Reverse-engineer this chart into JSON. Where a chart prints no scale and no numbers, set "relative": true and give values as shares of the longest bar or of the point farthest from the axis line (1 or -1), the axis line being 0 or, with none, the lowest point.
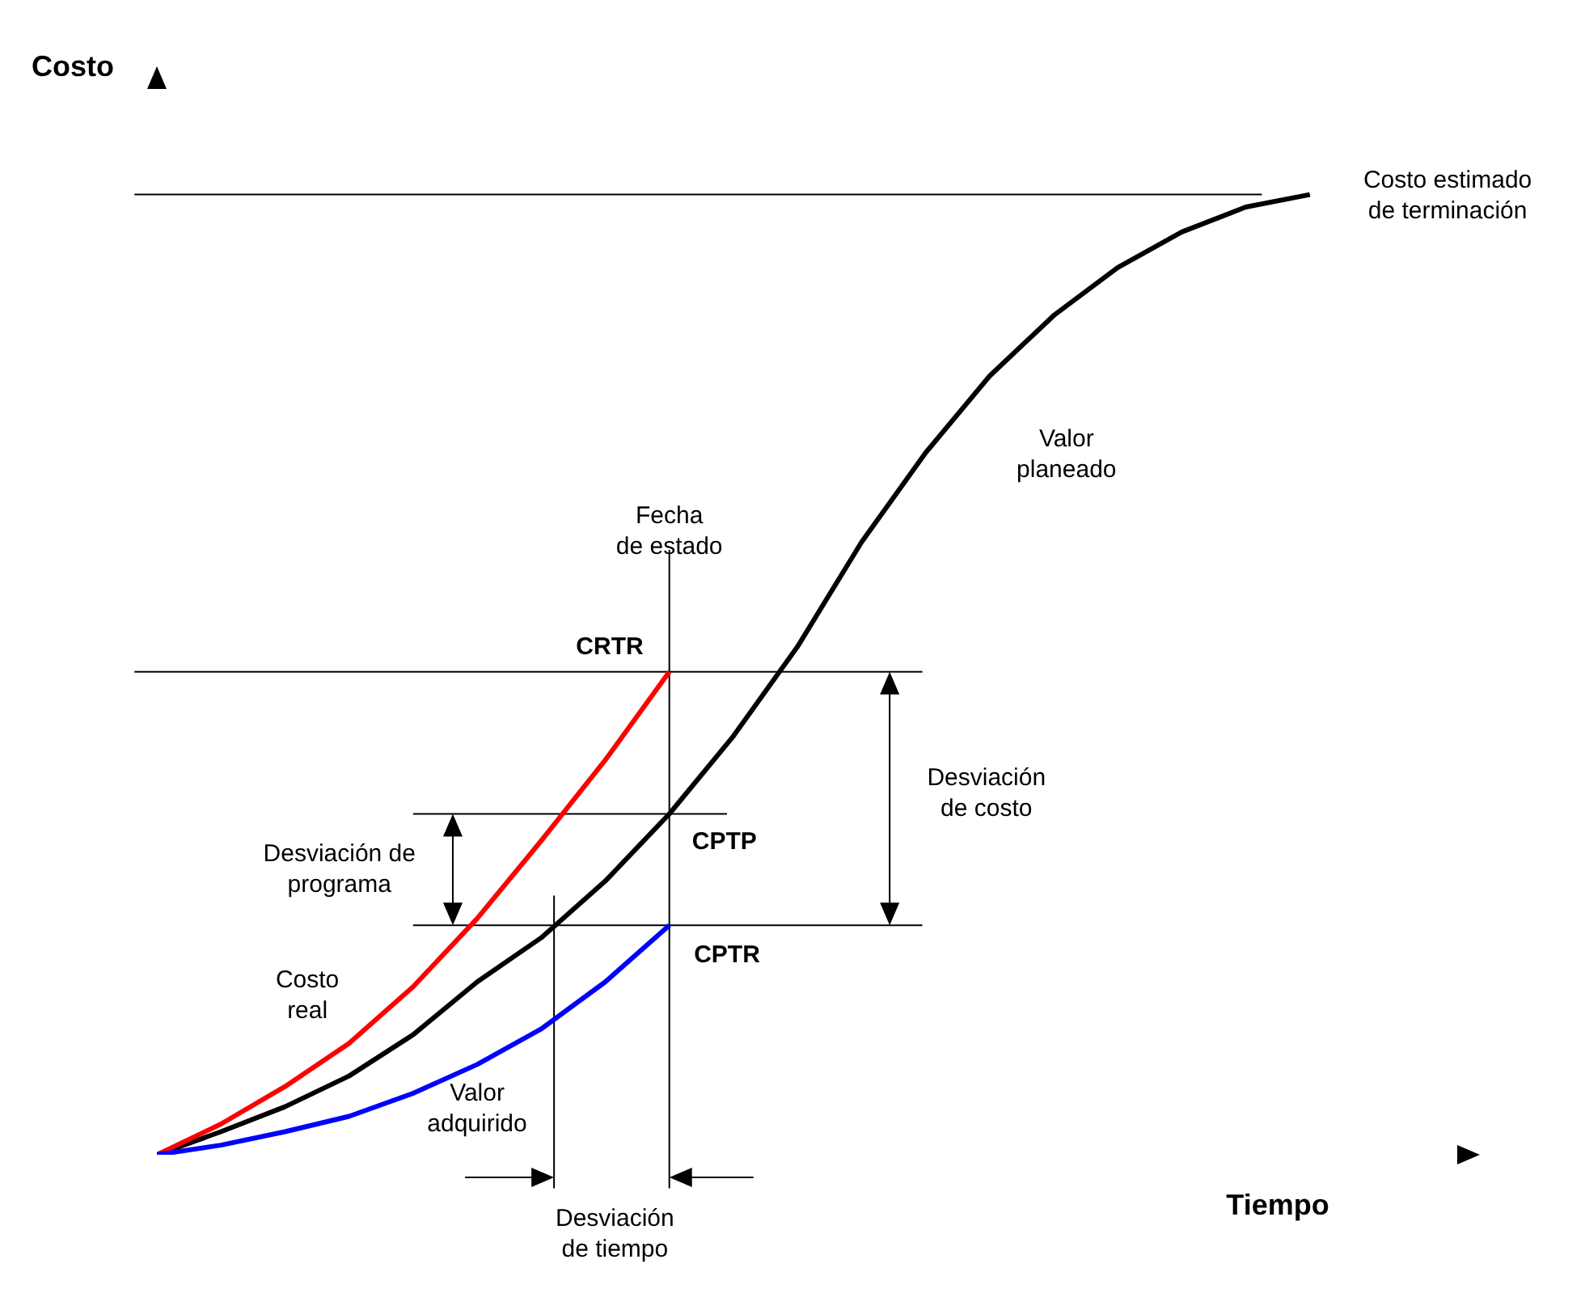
{
  "chart_data": {
    "type": "line",
    "relative": true,
    "xlabel": "Tiempo",
    "ylabel": "Costo",
    "marker": "none",
    "line_style": "solid",
    "categories": [
      null,
      null,
      null,
      null,
      null,
      null,
      null,
      null,
      null,
      null,
      null,
      null,
      null,
      null,
      null,
      null,
      null,
      null,
      null
    ],
    "series": [
      {
        "color": "#000000",
        "values": [
          0,
          0.024,
          0.05,
          0.082,
          0.125,
          0.18,
          0.226,
          0.285,
          0.355,
          0.436,
          0.529,
          0.638,
          0.731,
          0.811,
          0.874,
          0.924,
          0.961,
          0.987,
          1
        ]
      },
      {
        "color": "#ff0000",
        "values": [
          0,
          0.032,
          0.071,
          0.116,
          0.175,
          0.246,
          0.327,
          0.411,
          0.503,
          null,
          null,
          null,
          null,
          null,
          null,
          null,
          null,
          null,
          null
        ]
      },
      {
        "color": "#0000ff",
        "values": [
          0,
          0.01,
          0.024,
          0.04,
          0.064,
          0.094,
          0.131,
          0.18,
          0.239,
          null,
          null,
          null,
          null,
          null,
          null,
          null,
          null,
          null,
          null
        ]
      }
    ],
    "ref_lines": [
      {
        "axis": "y",
        "value": 1,
        "color": "#000000"
      },
      {
        "axis": "y",
        "value": 0.503,
        "color": "#000000"
      },
      {
        "axis": "y",
        "value": 0.355,
        "color": "#000000"
      },
      {
        "axis": "y",
        "value": 0.239,
        "color": "#000000"
      }
    ],
    "annotations": [
      "Costo estimado\nde terminación",
      "Valor\nplaneado",
      "Fecha\nde estado",
      "CRTR",
      "CPTP",
      "CPTR",
      "Desviación\nde costo",
      "Desviación de\nprograma",
      "Costo\nreal",
      "Valor\nadquirido",
      "Desviación\nde tiempo"
    ]
  }
}
